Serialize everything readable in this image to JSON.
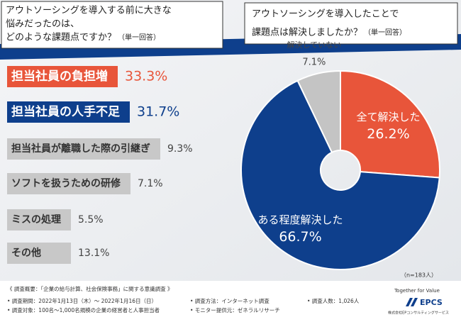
{
  "chart_data": [
    {
      "type": "bar",
      "title_lines": [
        "アウトソーシングを導入する前に大きな",
        "悩みだったのは、",
        "どのような課題点ですか？"
      ],
      "note": "（単一回答）",
      "categories": [
        "担当社員の負担増",
        "担当社員の人手不足",
        "担当社員が離職した際の引継ぎ",
        "ソフトを扱うための研修",
        "ミスの処理",
        "その他"
      ],
      "values": [
        33.3,
        31.7,
        9.3,
        7.1,
        5.5,
        13.1
      ],
      "value_labels": [
        "33.3%",
        "31.7%",
        "9.3%",
        "7.1%",
        "5.5%",
        "13.1%"
      ],
      "colors": [
        "#e8553a",
        "#0e3f8c",
        "#c8c8c8",
        "#c8c8c8",
        "#c8c8c8",
        "#c8c8c8"
      ]
    },
    {
      "type": "pie",
      "title_lines": [
        "アウトソーシングを導入したことで",
        "課題点は解決しましたか？"
      ],
      "note": "（単一回答）",
      "categories": [
        "全て解決した",
        "ある程度解決した",
        "解決していない"
      ],
      "values": [
        26.2,
        66.7,
        7.1
      ],
      "value_labels": [
        "26.2%",
        "66.7%",
        "7.1%"
      ],
      "colors": [
        "#e8553a",
        "#0e3f8c",
        "#c4c4c4"
      ],
      "annotation": "（n=183人）"
    }
  ],
  "footer": {
    "heading": "《 調査概要：「企業の給与計算、社会保険事務」に関する意識調査 》",
    "items": [
      "• 調査期間：2022年1月13日（木）～ 2022年1月16日（日）",
      "• 調査方法：インターネット調査",
      "• 調査人数：1,026人",
      "• 調査対象：100名～1,000名規模の企業の経営者と人事担当者",
      "• モニター提供元：ゼネラルリサーチ"
    ],
    "tagline": "Together for Value",
    "logo": "EPCS",
    "company": "株式会社EPコンサルティングサービス"
  }
}
